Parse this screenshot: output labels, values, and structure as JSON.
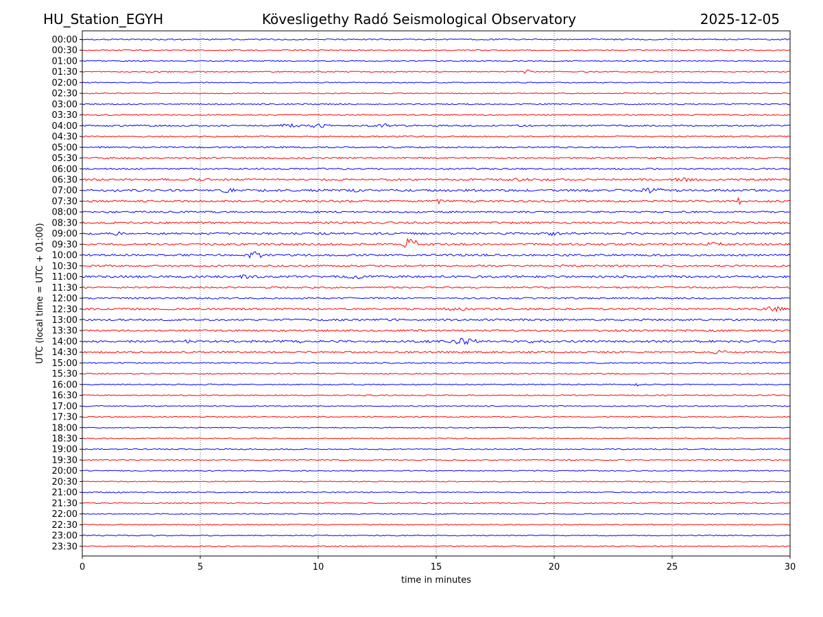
{
  "header": {
    "station": "HU_Station_EGYH",
    "observatory": "Kövesligethy Radó Seismological Observatory",
    "date": "2025-12-05"
  },
  "chart_data": {
    "type": "line",
    "title": "Kövesligethy Radó Seismological Observatory",
    "xlabel": "time in minutes",
    "ylabel": "UTC (local time = UTC + 01:00)",
    "xlim": [
      0,
      30
    ],
    "x_ticks": [
      "0",
      "5",
      "10",
      "15",
      "20",
      "25",
      "30"
    ],
    "row_colors": [
      "#0000ff",
      "#ff0000"
    ],
    "rows": [
      "00:00",
      "00:30",
      "01:00",
      "01:30",
      "02:00",
      "02:30",
      "03:00",
      "03:30",
      "04:00",
      "04:30",
      "05:00",
      "05:30",
      "06:00",
      "06:30",
      "07:00",
      "07:30",
      "08:00",
      "08:30",
      "09:00",
      "09:30",
      "10:00",
      "10:30",
      "11:00",
      "11:30",
      "12:00",
      "12:30",
      "13:00",
      "13:30",
      "14:00",
      "14:30",
      "15:00",
      "15:30",
      "16:00",
      "16:30",
      "17:00",
      "17:30",
      "18:00",
      "18:30",
      "19:00",
      "19:30",
      "20:00",
      "20:30",
      "21:00",
      "21:30",
      "22:00",
      "22:30",
      "23:00",
      "23:30"
    ],
    "noise_level": [
      1.0,
      0.9,
      0.9,
      0.9,
      0.8,
      0.8,
      1.0,
      1.0,
      1.3,
      1.1,
      1.2,
      1.3,
      1.3,
      1.6,
      1.8,
      1.6,
      1.4,
      1.6,
      1.6,
      1.6,
      1.6,
      1.4,
      1.7,
      1.3,
      1.3,
      1.5,
      1.5,
      1.5,
      1.8,
      1.4,
      1.0,
      1.0,
      0.9,
      0.9,
      0.9,
      0.9,
      0.8,
      0.8,
      0.9,
      0.9,
      0.8,
      0.8,
      0.9,
      0.9,
      0.8,
      0.8,
      0.9,
      0.9
    ],
    "events": [
      {
        "row": "01:30",
        "minute": 18.8,
        "duration": 0.6,
        "amplitude": 3
      },
      {
        "row": "04:00",
        "minute": 8.8,
        "duration": 1.2,
        "amplitude": 3
      },
      {
        "row": "04:00",
        "minute": 10.0,
        "duration": 1.5,
        "amplitude": 3
      },
      {
        "row": "04:00",
        "minute": 12.9,
        "duration": 1.5,
        "amplitude": 3
      },
      {
        "row": "05:30",
        "minute": 1.0,
        "duration": 0.3,
        "amplitude": 3
      },
      {
        "row": "06:30",
        "minute": 18.5,
        "duration": 1.5,
        "amplitude": 3
      },
      {
        "row": "06:30",
        "minute": 25.5,
        "duration": 1.5,
        "amplitude": 3
      },
      {
        "row": "07:00",
        "minute": 1.5,
        "duration": 0.4,
        "amplitude": 4
      },
      {
        "row": "07:00",
        "minute": 6.2,
        "duration": 1.5,
        "amplitude": 4
      },
      {
        "row": "07:00",
        "minute": 11.6,
        "duration": 0.5,
        "amplitude": 3
      },
      {
        "row": "07:00",
        "minute": 24.2,
        "duration": 1.5,
        "amplitude": 4
      },
      {
        "row": "07:30",
        "minute": 11.2,
        "duration": 0.6,
        "amplitude": 3
      },
      {
        "row": "07:30",
        "minute": 15.1,
        "duration": 0.4,
        "amplitude": 4
      },
      {
        "row": "07:30",
        "minute": 27.8,
        "duration": 0.3,
        "amplitude": 6
      },
      {
        "row": "09:00",
        "minute": 1.5,
        "duration": 0.5,
        "amplitude": 3
      },
      {
        "row": "09:00",
        "minute": 19.8,
        "duration": 1.5,
        "amplitude": 3
      },
      {
        "row": "09:30",
        "minute": 13.9,
        "duration": 0.8,
        "amplitude": 9
      },
      {
        "row": "09:30",
        "minute": 26.8,
        "duration": 1.5,
        "amplitude": 3
      },
      {
        "row": "10:00",
        "minute": 7.3,
        "duration": 0.8,
        "amplitude": 6
      },
      {
        "row": "10:30",
        "minute": 20.3,
        "duration": 0.3,
        "amplitude": 3
      },
      {
        "row": "11:00",
        "minute": 7.0,
        "duration": 1.5,
        "amplitude": 3
      },
      {
        "row": "11:00",
        "minute": 11.5,
        "duration": 1.0,
        "amplitude": 4
      },
      {
        "row": "12:30",
        "minute": 15.8,
        "duration": 1.5,
        "amplitude": 3
      },
      {
        "row": "12:30",
        "minute": 29.3,
        "duration": 1.2,
        "amplitude": 4
      },
      {
        "row": "14:00",
        "minute": 4.4,
        "duration": 0.6,
        "amplitude": 3
      },
      {
        "row": "14:00",
        "minute": 9.2,
        "duration": 0.4,
        "amplitude": 3
      },
      {
        "row": "14:00",
        "minute": 16.2,
        "duration": 1.5,
        "amplitude": 5
      },
      {
        "row": "14:00",
        "minute": 19.0,
        "duration": 0.6,
        "amplitude": 3
      },
      {
        "row": "14:30",
        "minute": 27.0,
        "duration": 1.0,
        "amplitude": 3
      },
      {
        "row": "16:00",
        "minute": 23.5,
        "duration": 0.2,
        "amplitude": 4
      },
      {
        "row": "17:30",
        "minute": 19.3,
        "duration": 0.2,
        "amplitude": 3
      }
    ]
  }
}
